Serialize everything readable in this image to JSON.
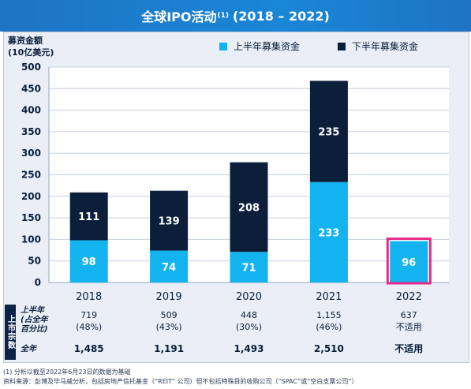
{
  "header": {
    "title": "全球IPO活动",
    "sup": "(1)",
    "years": "(2018 – 2022)"
  },
  "axis": {
    "ylabel_line1": "募资金额",
    "ylabel_line2": "(10亿美元)"
  },
  "legend": {
    "h1": "上半年募集资金",
    "h2": "下半年募集资金"
  },
  "colors": {
    "h1": "#12b3ee",
    "h2": "#0b1f3a",
    "highlight": "#e8298c",
    "grid": "#c6cfdf"
  },
  "chart_data": {
    "type": "bar",
    "stacked": true,
    "categories": [
      "2018",
      "2019",
      "2020",
      "2021",
      "2022"
    ],
    "series": [
      {
        "name": "上半年募集资金",
        "values": [
          98,
          74,
          71,
          233,
          96
        ]
      },
      {
        "name": "下半年募集资金",
        "values": [
          111,
          139,
          208,
          235,
          null
        ]
      }
    ],
    "ylabel": "募资金额 (10亿美元)",
    "ylim": [
      0,
      500
    ],
    "yticks": [
      0,
      50,
      100,
      150,
      200,
      250,
      300,
      350,
      400,
      450,
      500
    ],
    "grid": true,
    "legend_position": "top-right",
    "highlighted_category": "2022"
  },
  "table": {
    "row_header": "上市宗数",
    "h1_label_line1": "上半年",
    "h1_label_line2": "(占全年",
    "h1_label_line3": "百分比)",
    "total_label": "全年",
    "h1_counts": [
      "719",
      "509",
      "448",
      "1,155",
      "637"
    ],
    "h1_pcts": [
      "(48%)",
      "(43%)",
      "(30%)",
      "(46%)",
      "不适用"
    ],
    "totals": [
      "1,485",
      "1,191",
      "1,493",
      "2,510",
      "不适用"
    ]
  },
  "footnotes": {
    "line1": "(1)   分析以截至2022年6月23日的数据为基础",
    "line2": "资料来源：彭博及毕马威分析，包括房地产信托基金（“REIT” 公司）但不包括特殊目的收购公司（“SPAC”或“空白支票公司”）"
  }
}
